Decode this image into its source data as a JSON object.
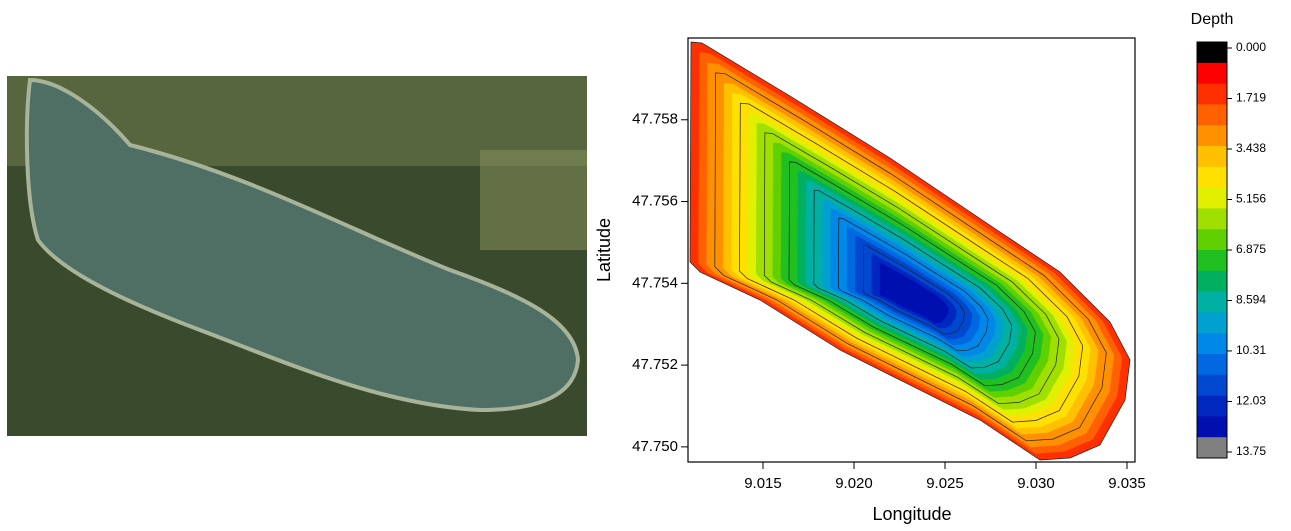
{
  "chart_data": {
    "type": "contour",
    "xlabel": "Longitude",
    "ylabel": "Latitude",
    "xlim": [
      9.01088,
      9.03544
    ],
    "ylim": [
      47.74963,
      47.76
    ],
    "xticks": [
      9.015,
      {
        "value": 9.02,
        "label": "9.020"
      },
      9.025,
      {
        "value": 9.03,
        "label": "9.030"
      },
      9.035
    ],
    "yticks": [
      {
        "value": 47.75,
        "label": "47.750"
      },
      47.752,
      47.754,
      47.756,
      47.758
    ],
    "colorbar": {
      "title": "Depth",
      "lim": [
        0,
        13.75
      ],
      "ticks": [
        {
          "value": 0,
          "label": "0.000"
        },
        1.719,
        3.438,
        5.156,
        6.875,
        8.594,
        10.31,
        12.03,
        13.75
      ],
      "colors": [
        "#000000",
        "#ff0000",
        "#ff3000",
        "#ff6000",
        "#ff9000",
        "#ffc000",
        "#ffe000",
        "#e0f000",
        "#a0e000",
        "#60d000",
        "#20c020",
        "#00b060",
        "#00b0a0",
        "#00a0d0",
        "#0088e8",
        "#0068e0",
        "#0048d0",
        "#0028c0",
        "#0010b0",
        "#808080"
      ]
    }
  }
}
